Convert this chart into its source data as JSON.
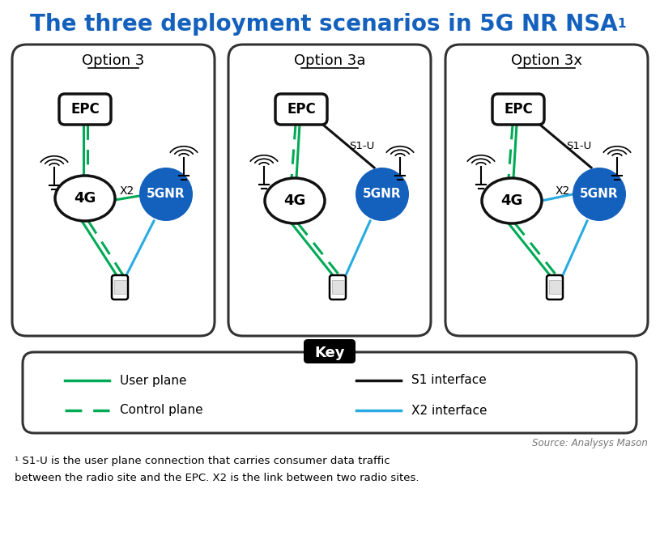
{
  "title": "The three deployment scenarios in 5G NR NSA",
  "title_superscript": "1",
  "title_color": "#1461BD",
  "bg_color": "#FFFFFF",
  "green_solid": "#00AA55",
  "green_dashed": "#00AA55",
  "blue_x2": "#29ABE2",
  "black_s1": "#111111",
  "node_4g_border": "#111111",
  "node_5gnr_color": "#1461BD",
  "node_5gnr_text": "#FFFFFF",
  "epc_border": "#111111",
  "panel_border": "#333333",
  "footnote_line1": "¹ S1-U is the user plane connection that carries consumer data traffic",
  "footnote_line2": "between the radio site and the EPC. X2 is the link between two radio sites.",
  "source_text": "Source: Analysys Mason"
}
